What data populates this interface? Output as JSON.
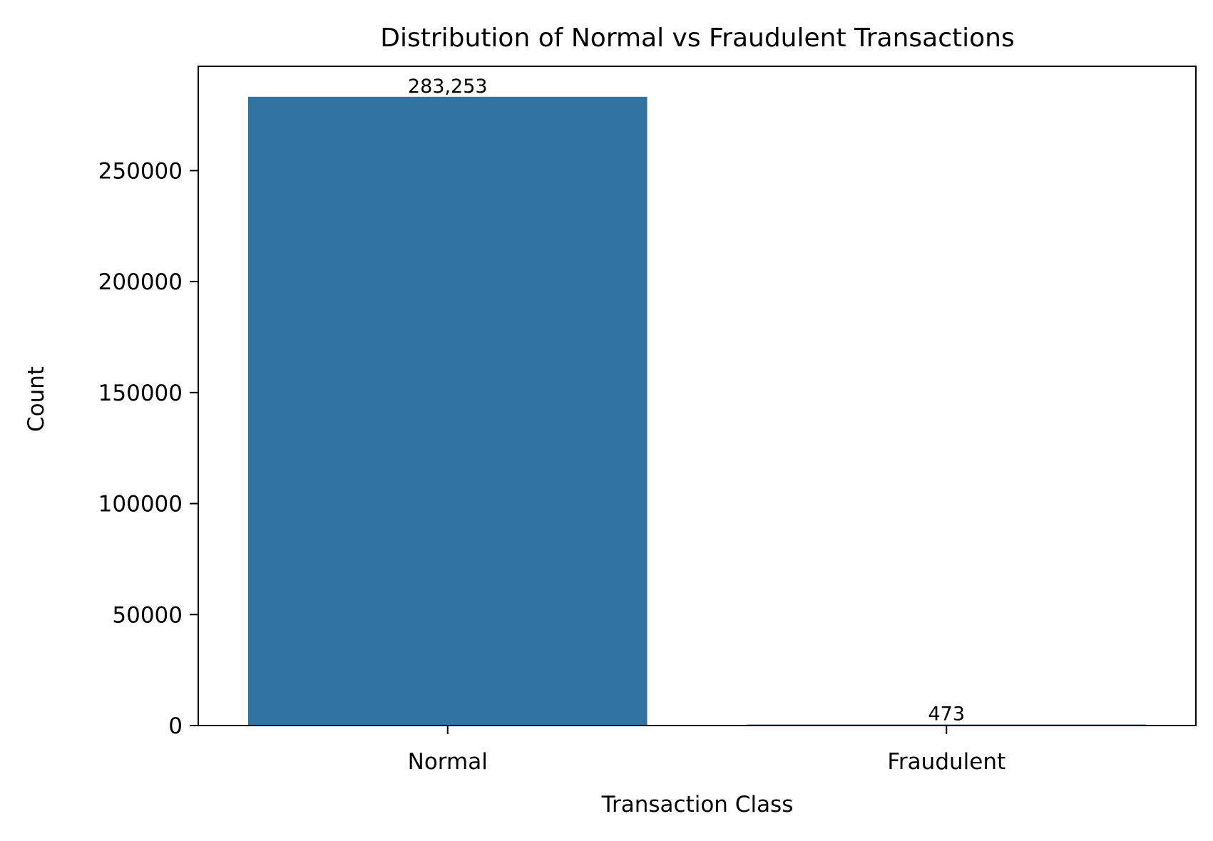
{
  "chart_data": {
    "type": "bar",
    "title": "Distribution of Normal vs Fraudulent Transactions",
    "xlabel": "Transaction Class",
    "ylabel": "Count",
    "categories": [
      "Normal",
      "Fraudulent"
    ],
    "values": [
      283253,
      473
    ],
    "data_labels": [
      "283,253",
      "473"
    ],
    "ylim": [
      0,
      297000
    ],
    "yticks": [
      0,
      50000,
      100000,
      150000,
      200000,
      250000
    ],
    "ytick_labels": [
      "0",
      "50000",
      "100000",
      "150000",
      "200000",
      "250000"
    ],
    "grid": false,
    "legend": "none",
    "bar_color": "#3274a1"
  }
}
